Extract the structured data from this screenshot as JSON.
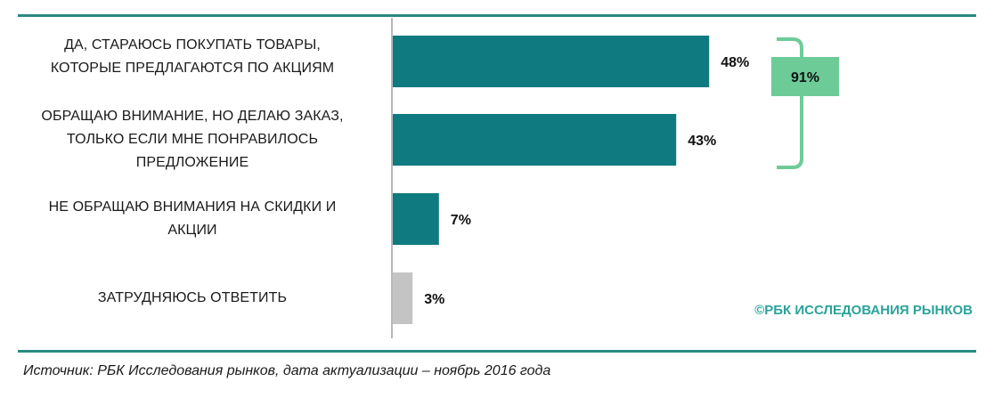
{
  "chart_data": {
    "type": "bar",
    "orientation": "horizontal",
    "categories": [
      [
        "ДА, СТАРАЮСЬ ПОКУПАТЬ ТОВАРЫ,",
        "КОТОРЫЕ ПРЕДЛАГАЮТСЯ ПО АКЦИЯМ"
      ],
      [
        "ОБРАЩАЮ ВНИМАНИЕ, НО ДЕЛАЮ ЗАКАЗ,",
        "ТОЛЬКО ЕСЛИ МНЕ ПОНРАВИЛОСЬ",
        "ПРЕДЛОЖЕНИЕ"
      ],
      [
        "НЕ ОБРАЩАЮ ВНИМАНИЯ НА СКИДКИ И",
        "АКЦИИ"
      ],
      [
        "ЗАТРУДНЯЮСЬ ОТВЕТИТЬ"
      ]
    ],
    "values": [
      48,
      43,
      7,
      3
    ],
    "value_labels": [
      "48%",
      "43%",
      "7%",
      "3%"
    ],
    "bar_colors": [
      "#0f7a7f",
      "#0f7a7f",
      "#0f7a7f",
      "#c4c4c4"
    ],
    "xlim": [
      0,
      100
    ],
    "grid": false,
    "annotation": {
      "text": "91%",
      "groups_categories": [
        0,
        1
      ],
      "color": "#6dcb98"
    }
  },
  "watermark": "©РБК ИССЛЕДОВАНИЯ РЫНКОВ",
  "source": "Источник: РБК Исследования рынков, дата актуализации – ноябрь 2016 года"
}
